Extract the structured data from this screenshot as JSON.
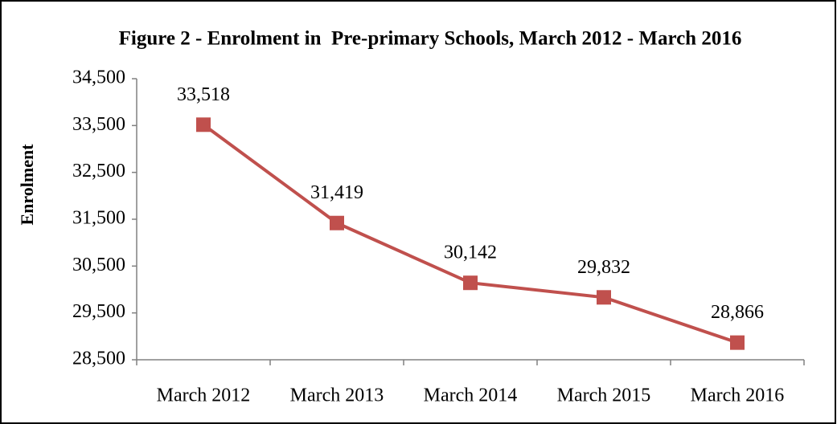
{
  "chart_data": {
    "type": "line",
    "title": "Figure 2 - Enrolment in  Pre-primary Schools, March 2012 - March 2016",
    "y_label": "Enrolment",
    "categories": [
      "March 2012",
      "March 2013",
      "March 2014",
      "March 2015",
      "March 2016"
    ],
    "series": [
      {
        "name": "Enrolment",
        "color": "#c0504d",
        "values": [
          33518,
          31419,
          30142,
          29832,
          28866
        ],
        "value_labels": [
          "33,518",
          "31,419",
          "30,142",
          "29,832",
          "28,866"
        ]
      }
    ],
    "ylim": [
      28500,
      34500
    ],
    "yticks": [
      {
        "value": 28500,
        "label": "28,500"
      },
      {
        "value": 29500,
        "label": "29,500"
      },
      {
        "value": 30500,
        "label": "30,500"
      },
      {
        "value": 31500,
        "label": "31,500"
      },
      {
        "value": 32500,
        "label": "32,500"
      },
      {
        "value": 33500,
        "label": "33,500"
      },
      {
        "value": 34500,
        "label": "34,500"
      }
    ],
    "grid": false,
    "legend": false
  }
}
